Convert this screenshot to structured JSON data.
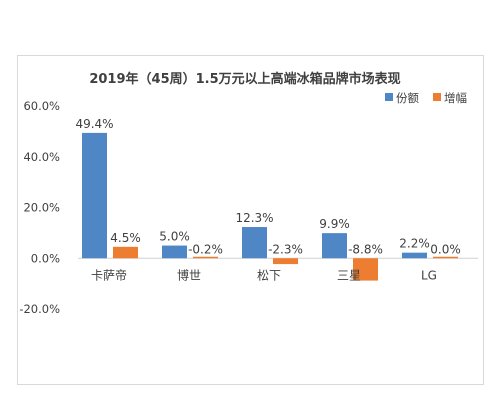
{
  "chart_data": {
    "type": "bar",
    "title": "2019年（45周）1.5万元以上高端冰箱品牌市场表现",
    "categories": [
      "卡萨帝",
      "博世",
      "松下",
      "三星",
      "LG"
    ],
    "series": [
      {
        "name": "份额",
        "values": [
          49.4,
          5.0,
          12.3,
          9.9,
          2.2
        ],
        "labels": [
          "49.4%",
          "5.0%",
          "12.3%",
          "9.9%",
          "2.2%"
        ],
        "color": "#4f87c6"
      },
      {
        "name": "增幅",
        "values": [
          4.5,
          -0.2,
          -2.3,
          -8.8,
          0.0
        ],
        "labels": [
          "4.5%",
          "-0.2%",
          "-2.3%",
          "-8.8%",
          "0.0%"
        ],
        "color": "#ed7d31"
      }
    ],
    "ylim": [
      -20,
      60
    ],
    "y_ticks": [
      "-20.0%",
      "0.0%",
      "20.0%",
      "40.0%",
      "60.0%"
    ],
    "y_tick_values": [
      -20,
      0,
      20,
      40,
      60
    ],
    "legend_position": "top-right",
    "grid": false,
    "xlabel": "",
    "ylabel": ""
  }
}
